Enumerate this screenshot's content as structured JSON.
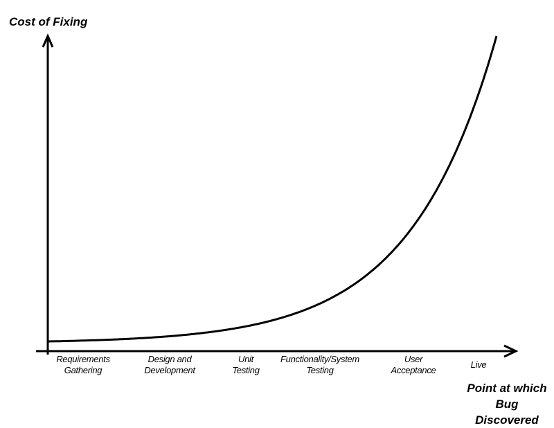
{
  "chart_data": {
    "type": "line",
    "title": "",
    "ylabel": "Cost of Fixing",
    "xlabel": "Point at which Bug Discovered",
    "categories": [
      "Requirements Gathering",
      "Design and Development",
      "Unit Testing",
      "Functionality/System Testing",
      "User Acceptance",
      "Live"
    ],
    "category_lines": [
      [
        "Requirements",
        "Gathering"
      ],
      [
        "Design and",
        "Development"
      ],
      [
        "Unit",
        "Testing"
      ],
      [
        "Functionality/System",
        "Testing"
      ],
      [
        "User",
        "Acceptance"
      ],
      [
        "Live"
      ]
    ],
    "curve": "exponential increase",
    "y_ticks": "none",
    "grid": false,
    "legend": "none",
    "line_color": "#000000"
  }
}
